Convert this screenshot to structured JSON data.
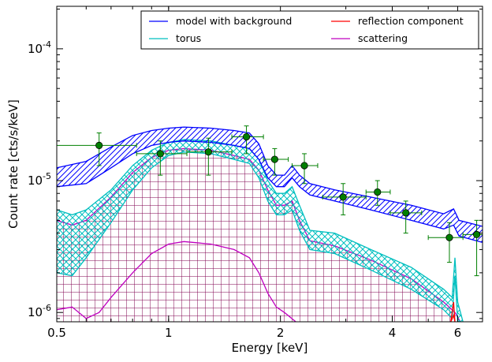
{
  "chart_data": {
    "type": "line",
    "xlabel": "Energy [keV]",
    "ylabel": "Count rate [cts/s/keV]",
    "xscale": "log",
    "yscale": "log",
    "xlim": [
      0.5,
      7.0
    ],
    "ylim": [
      8.5e-07,
      0.00021
    ],
    "xticks": [
      {
        "value": 0.5,
        "label": "0.5"
      },
      {
        "value": 1,
        "label": "1"
      },
      {
        "value": 2,
        "label": "2"
      },
      {
        "value": 4,
        "label": "4"
      },
      {
        "value": 6,
        "label": "6"
      }
    ],
    "yticks": [
      {
        "value": 1e-06,
        "base": "10",
        "exp": "-6"
      },
      {
        "value": 1e-05,
        "base": "10",
        "exp": "-5"
      },
      {
        "value": 0.0001,
        "base": "10",
        "exp": "-4"
      }
    ],
    "legend": {
      "position": "top-right",
      "columns": 2,
      "entries": [
        {
          "name": "model with background",
          "color": "#0000ff"
        },
        {
          "name": "torus",
          "color": "#00bfbf"
        },
        {
          "name": "reflection component",
          "color": "#ff0000"
        },
        {
          "name": "scattering",
          "color": "#bf00bf"
        }
      ]
    },
    "series": [
      {
        "name": "model with background",
        "color": "#0000ff",
        "hatch": "diagonal",
        "upper": [
          [
            0.5,
            1.25e-05
          ],
          [
            0.6,
            1.4e-05
          ],
          [
            0.7,
            1.8e-05
          ],
          [
            0.8,
            2.2e-05
          ],
          [
            0.9,
            2.4e-05
          ],
          [
            1.0,
            2.5e-05
          ],
          [
            1.1,
            2.55e-05
          ],
          [
            1.3,
            2.5e-05
          ],
          [
            1.5,
            2.4e-05
          ],
          [
            1.65,
            2.3e-05
          ],
          [
            1.75,
            1.9e-05
          ],
          [
            1.85,
            1.3e-05
          ],
          [
            1.95,
            1.1e-05
          ],
          [
            2.05,
            1.1e-05
          ],
          [
            2.15,
            1.3e-05
          ],
          [
            2.25,
            1.1e-05
          ],
          [
            2.4,
            9.5e-06
          ],
          [
            2.8,
            8.5e-06
          ],
          [
            3.5,
            7.5e-06
          ],
          [
            4.5,
            6.5e-06
          ],
          [
            5.5,
            5.6e-06
          ],
          [
            5.85,
            6.1e-06
          ],
          [
            6.05,
            5e-06
          ],
          [
            7.0,
            4.5e-06
          ]
        ],
        "lower": [
          [
            0.5,
            9e-06
          ],
          [
            0.6,
            9.5e-06
          ],
          [
            0.7,
            1.25e-05
          ],
          [
            0.8,
            1.6e-05
          ],
          [
            0.9,
            1.85e-05
          ],
          [
            1.0,
            1.95e-05
          ],
          [
            1.1,
            2e-05
          ],
          [
            1.3,
            1.95e-05
          ],
          [
            1.5,
            1.85e-05
          ],
          [
            1.65,
            1.75e-05
          ],
          [
            1.75,
            1.45e-05
          ],
          [
            1.85,
            1.05e-05
          ],
          [
            1.95,
            9e-06
          ],
          [
            2.05,
            9e-06
          ],
          [
            2.15,
            1.05e-05
          ],
          [
            2.25,
            9e-06
          ],
          [
            2.4,
            7.8e-06
          ],
          [
            2.8,
            7e-06
          ],
          [
            3.5,
            6e-06
          ],
          [
            4.5,
            5e-06
          ],
          [
            5.5,
            4.3e-06
          ],
          [
            5.85,
            4.6e-06
          ],
          [
            6.05,
            3.8e-06
          ],
          [
            7.0,
            3.4e-06
          ]
        ]
      },
      {
        "name": "torus",
        "color": "#00bfbf",
        "hatch": "cross",
        "upper": [
          [
            0.5,
            6e-06
          ],
          [
            0.55,
            5.5e-06
          ],
          [
            0.6,
            6e-06
          ],
          [
            0.7,
            8.5e-06
          ],
          [
            0.8,
            1.3e-05
          ],
          [
            0.9,
            1.7e-05
          ],
          [
            1.0,
            1.95e-05
          ],
          [
            1.1,
            2.05e-05
          ],
          [
            1.3,
            2e-05
          ],
          [
            1.5,
            1.85e-05
          ],
          [
            1.65,
            1.75e-05
          ],
          [
            1.75,
            1.45e-05
          ],
          [
            1.85,
            1e-05
          ],
          [
            1.95,
            8e-06
          ],
          [
            2.05,
            8e-06
          ],
          [
            2.15,
            9e-06
          ],
          [
            2.25,
            6.5e-06
          ],
          [
            2.4,
            4.2e-06
          ],
          [
            2.8,
            4e-06
          ],
          [
            3.5,
            3e-06
          ],
          [
            4.5,
            2.2e-06
          ],
          [
            5.5,
            1.5e-06
          ],
          [
            5.8,
            1.3e-06
          ],
          [
            5.9,
            2.6e-06
          ],
          [
            6.0,
            1.2e-06
          ],
          [
            6.2,
            8.5e-07
          ]
        ],
        "lower": [
          [
            0.5,
            2e-06
          ],
          [
            0.55,
            1.9e-06
          ],
          [
            0.6,
            2.6e-06
          ],
          [
            0.7,
            4.8e-06
          ],
          [
            0.8,
            8.5e-06
          ],
          [
            0.9,
            1.25e-05
          ],
          [
            1.0,
            1.55e-05
          ],
          [
            1.1,
            1.65e-05
          ],
          [
            1.3,
            1.6e-05
          ],
          [
            1.5,
            1.45e-05
          ],
          [
            1.65,
            1.35e-05
          ],
          [
            1.75,
            1.05e-05
          ],
          [
            1.85,
            7e-06
          ],
          [
            1.95,
            5.5e-06
          ],
          [
            2.05,
            5.5e-06
          ],
          [
            2.15,
            6e-06
          ],
          [
            2.25,
            4.2e-06
          ],
          [
            2.4,
            3e-06
          ],
          [
            2.8,
            2.8e-06
          ],
          [
            3.5,
            2.1e-06
          ],
          [
            4.5,
            1.5e-06
          ],
          [
            5.5,
            1.05e-06
          ],
          [
            5.8,
            9e-07
          ],
          [
            5.9,
            1.9e-06
          ],
          [
            6.0,
            8.6e-07
          ],
          [
            6.1,
            8.5e-07
          ]
        ]
      },
      {
        "name": "reflection component",
        "color": "#ff0000",
        "hatch": "none",
        "upper": [
          [
            5.75,
            8.5e-07
          ],
          [
            5.85,
            1.2e-06
          ],
          [
            5.9,
            8.5e-07
          ]
        ],
        "lower": [
          [
            5.75,
            8.5e-07
          ],
          [
            5.85,
            9.5e-07
          ],
          [
            5.9,
            8.5e-07
          ]
        ]
      },
      {
        "name": "scattering",
        "color": "#bf00bf",
        "hatch": "grid",
        "upper": [
          [
            0.5,
            5e-06
          ],
          [
            0.55,
            4.6e-06
          ],
          [
            0.6,
            5e-06
          ],
          [
            0.7,
            7.5e-06
          ],
          [
            0.8,
            1.15e-05
          ],
          [
            0.9,
            1.5e-05
          ],
          [
            1.0,
            1.7e-05
          ],
          [
            1.1,
            1.75e-05
          ],
          [
            1.3,
            1.7e-05
          ],
          [
            1.5,
            1.55e-05
          ],
          [
            1.65,
            1.45e-05
          ],
          [
            1.75,
            1.2e-05
          ],
          [
            1.85,
            8.5e-06
          ],
          [
            1.95,
            6.5e-06
          ],
          [
            2.05,
            6.5e-06
          ],
          [
            2.15,
            7e-06
          ],
          [
            2.25,
            5e-06
          ],
          [
            2.4,
            3.5e-06
          ],
          [
            2.8,
            3.2e-06
          ],
          [
            3.5,
            2.5e-06
          ],
          [
            4.5,
            1.8e-06
          ],
          [
            5.5,
            1.2e-06
          ],
          [
            5.9,
            1e-06
          ],
          [
            6.1,
            8.5e-07
          ]
        ],
        "middle": [
          [
            0.5,
            1.05e-06
          ],
          [
            0.55,
            1.1e-06
          ],
          [
            0.6,
            9e-07
          ],
          [
            0.65,
            1e-06
          ],
          [
            0.7,
            1.3e-06
          ],
          [
            0.8,
            2e-06
          ],
          [
            0.9,
            2.8e-06
          ],
          [
            1.0,
            3.3e-06
          ],
          [
            1.1,
            3.45e-06
          ],
          [
            1.3,
            3.3e-06
          ],
          [
            1.5,
            3e-06
          ],
          [
            1.65,
            2.6e-06
          ],
          [
            1.75,
            2e-06
          ],
          [
            1.85,
            1.4e-06
          ],
          [
            1.95,
            1.1e-06
          ],
          [
            2.05,
            1e-06
          ],
          [
            2.2,
            8.5e-07
          ]
        ],
        "lower": [
          [
            0.5,
            8.5e-07
          ],
          [
            7.0,
            8.5e-07
          ]
        ]
      }
    ],
    "data_points": {
      "name": "data",
      "color": "#007f00",
      "points": [
        {
          "x": 0.65,
          "y": 1.85e-05,
          "xerr": [
            0.5,
            0.82
          ],
          "yerr": [
            1.3e-05,
            2.3e-05
          ]
        },
        {
          "x": 0.95,
          "y": 1.6e-05,
          "xerr": [
            0.82,
            1.12
          ],
          "yerr": [
            1.1e-05,
            2e-05
          ]
        },
        {
          "x": 1.28,
          "y": 1.65e-05,
          "xerr": [
            1.12,
            1.48
          ],
          "yerr": [
            1.1e-05,
            2.1e-05
          ]
        },
        {
          "x": 1.62,
          "y": 2.15e-05,
          "xerr": [
            1.48,
            1.8
          ],
          "yerr": [
            1.6e-05,
            2.6e-05
          ]
        },
        {
          "x": 1.93,
          "y": 1.45e-05,
          "xerr": [
            1.8,
            2.1
          ],
          "yerr": [
            1.1e-05,
            1.75e-05
          ]
        },
        {
          "x": 2.32,
          "y": 1.3e-05,
          "xerr": [
            2.15,
            2.52
          ],
          "yerr": [
            9.5e-06,
            1.6e-05
          ]
        },
        {
          "x": 2.95,
          "y": 7.5e-06,
          "xerr": [
            2.6,
            3.4
          ],
          "yerr": [
            5.5e-06,
            9.5e-06
          ]
        },
        {
          "x": 3.65,
          "y": 8.2e-06,
          "xerr": [
            3.4,
            3.95
          ],
          "yerr": [
            6.5e-06,
            1e-05
          ]
        },
        {
          "x": 4.35,
          "y": 5.7e-06,
          "xerr": [
            3.95,
            4.8
          ],
          "yerr": [
            4e-06,
            7e-06
          ]
        },
        {
          "x": 5.7,
          "y": 3.7e-06,
          "xerr": [
            5.0,
            6.2
          ],
          "yerr": [
            2.4e-06,
            4.8e-06
          ]
        },
        {
          "x": 6.75,
          "y": 3.9e-06,
          "xerr": [
            6.2,
            7.0
          ],
          "yerr": [
            1.9e-06,
            5e-06
          ]
        }
      ]
    }
  }
}
